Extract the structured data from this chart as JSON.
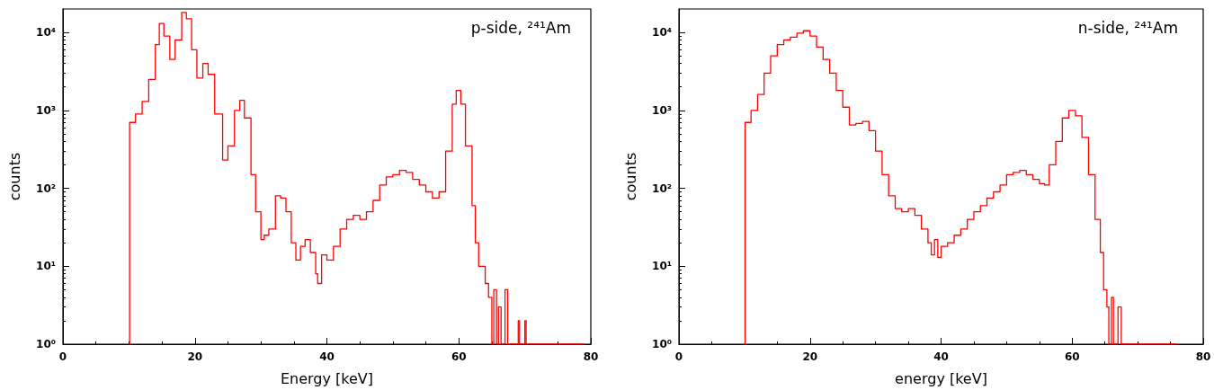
{
  "chart_data": [
    {
      "type": "step",
      "xlabel": "Energy [keV]",
      "ylabel": "counts",
      "log": "y",
      "grid": false,
      "marker": "none",
      "line_style": "solid",
      "annotations": [
        "p-side, ²⁴¹Am"
      ],
      "xlim": [
        0,
        80
      ],
      "xticks": [
        0,
        20,
        40,
        60,
        80
      ],
      "ylim": [
        1,
        20000
      ],
      "yticks": [
        {
          "value": 1,
          "label": "10⁰"
        },
        {
          "value": 10,
          "label": "10¹"
        },
        {
          "value": 100,
          "label": "10²"
        },
        {
          "value": 1000,
          "label": "10³"
        },
        {
          "value": 10000,
          "label": "10⁴"
        }
      ],
      "series": [
        {
          "color": "#ff0000",
          "x": [
            10,
            10.1,
            11,
            12,
            13,
            14,
            14.6,
            15.3,
            16.2,
            17,
            18,
            18.7,
            19.5,
            20.3,
            21.2,
            22,
            23,
            24.2,
            25,
            26,
            26.8,
            27.5,
            28.5,
            29.2,
            30,
            30.5,
            31.2,
            32.2,
            33,
            33.8,
            34.6,
            35.3,
            36,
            36.7,
            37.5,
            38.3,
            38.6,
            39.2,
            40,
            41,
            42,
            43,
            44,
            45,
            46,
            47,
            48,
            49,
            50,
            51,
            52,
            53,
            54,
            55,
            56,
            57,
            58,
            59,
            59.6,
            60.3,
            61,
            62,
            62.5,
            63,
            64,
            64.5,
            65,
            65.3,
            65.7,
            66,
            66.4,
            67,
            67.4,
            68,
            69,
            69.2,
            70,
            70.2,
            79
          ],
          "values": [
            1,
            700,
            900,
            1300,
            2500,
            7000,
            13000,
            9000,
            4500,
            8000,
            18000,
            15000,
            6000,
            2600,
            4000,
            2900,
            900,
            230,
            350,
            1000,
            1350,
            800,
            150,
            50,
            22,
            25,
            30,
            80,
            75,
            50,
            20,
            12,
            18,
            22,
            15,
            8,
            6,
            14,
            12,
            18,
            30,
            40,
            45,
            40,
            50,
            70,
            110,
            140,
            150,
            170,
            160,
            130,
            110,
            90,
            75,
            90,
            300,
            1200,
            1800,
            1200,
            350,
            60,
            20,
            10,
            6,
            4,
            1,
            5,
            1,
            3,
            1,
            5,
            1,
            1,
            2,
            1,
            2,
            1,
            1
          ]
        }
      ]
    },
    {
      "type": "step",
      "xlabel": "energy [keV]",
      "ylabel": "counts",
      "log": "y",
      "grid": false,
      "marker": "none",
      "line_style": "solid",
      "annotations": [
        "n-side, ²⁴¹Am"
      ],
      "xlim": [
        0,
        80
      ],
      "xticks": [
        0,
        20,
        40,
        60,
        80
      ],
      "ylim": [
        1,
        20000
      ],
      "yticks": [
        {
          "value": 1,
          "label": "10⁰"
        },
        {
          "value": 10,
          "label": "10¹"
        },
        {
          "value": 100,
          "label": "10²"
        },
        {
          "value": 1000,
          "label": "10³"
        },
        {
          "value": 10000,
          "label": "10⁴"
        }
      ],
      "series": [
        {
          "color": "#ff0000",
          "x": [
            10,
            10.1,
            11,
            12,
            13,
            14,
            15,
            16,
            17,
            18,
            19,
            20,
            21,
            22,
            23,
            24,
            25,
            26,
            27,
            28,
            29,
            30,
            31,
            32,
            33,
            34,
            35,
            36,
            37,
            38,
            38.5,
            39,
            39.5,
            40,
            41,
            42,
            43,
            44,
            45,
            46,
            47,
            48,
            49,
            50,
            51,
            52,
            53,
            54,
            55,
            55.8,
            56.5,
            57.5,
            58.5,
            59.5,
            60.5,
            61.5,
            62.5,
            63.5,
            64.3,
            64.8,
            65.3,
            65.6,
            66,
            66.3,
            67,
            67.5,
            76
          ],
          "values": [
            1,
            700,
            1000,
            1600,
            3000,
            5000,
            7000,
            8000,
            8700,
            9800,
            10500,
            9000,
            6500,
            4500,
            3000,
            1800,
            1100,
            650,
            680,
            720,
            550,
            300,
            150,
            80,
            55,
            50,
            55,
            45,
            30,
            20,
            14,
            22,
            13,
            18,
            20,
            25,
            30,
            40,
            50,
            60,
            75,
            90,
            110,
            150,
            160,
            170,
            150,
            130,
            115,
            110,
            200,
            400,
            800,
            1000,
            850,
            450,
            150,
            40,
            15,
            5,
            3,
            1,
            4,
            1,
            3,
            1,
            1
          ]
        }
      ]
    }
  ]
}
